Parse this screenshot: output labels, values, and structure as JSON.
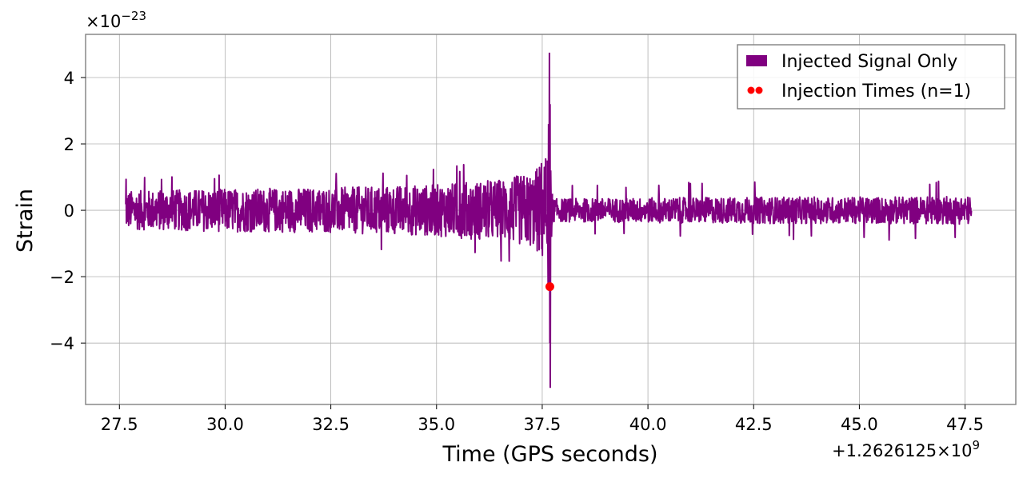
{
  "chart_data": {
    "type": "line",
    "title": "",
    "xlabel": "Time (GPS seconds)",
    "ylabel": "Strain",
    "x_offset_label": "+1.2626125×10",
    "x_offset_exp": "9",
    "y_scale_label": "×10",
    "y_scale_exp": "−23",
    "xlim": [
      26.7,
      48.7
    ],
    "ylim": [
      -5.85,
      5.3
    ],
    "x_ticks": [
      27.5,
      30.0,
      32.5,
      35.0,
      37.5,
      40.0,
      42.5,
      45.0,
      47.5
    ],
    "x_tick_labels": [
      "27.5",
      "30.0",
      "32.5",
      "35.0",
      "37.5",
      "40.0",
      "42.5",
      "45.0",
      "47.5"
    ],
    "y_ticks": [
      -4,
      -2,
      0,
      2,
      4
    ],
    "y_tick_labels": [
      "−4",
      "−2",
      "0",
      "2",
      "4"
    ],
    "grid": true,
    "legend_position": "top-right",
    "series": [
      {
        "name": "Injected Signal Only",
        "kind": "line",
        "color": "#800080",
        "x_start": 27.65,
        "x_end": 47.65,
        "pre_merger_envelope": [
          [
            27.65,
            0.9
          ],
          [
            30.0,
            1.0
          ],
          [
            32.5,
            1.05
          ],
          [
            35.0,
            1.2
          ],
          [
            36.5,
            1.45
          ],
          [
            37.3,
            1.75
          ],
          [
            37.55,
            2.6
          ]
        ],
        "merger_peak": {
          "x": 37.68,
          "max": 4.75,
          "min": -5.35
        },
        "post_merger_envelope": [
          [
            37.8,
            0.7
          ],
          [
            40.0,
            0.75
          ],
          [
            42.5,
            0.8
          ],
          [
            45.0,
            0.8
          ],
          [
            47.65,
            0.85
          ]
        ]
      },
      {
        "name": "Injection Times (n=1)",
        "kind": "scatter",
        "color": "#ff0000",
        "points": [
          {
            "x": 37.68,
            "y": -2.3
          }
        ]
      }
    ]
  }
}
